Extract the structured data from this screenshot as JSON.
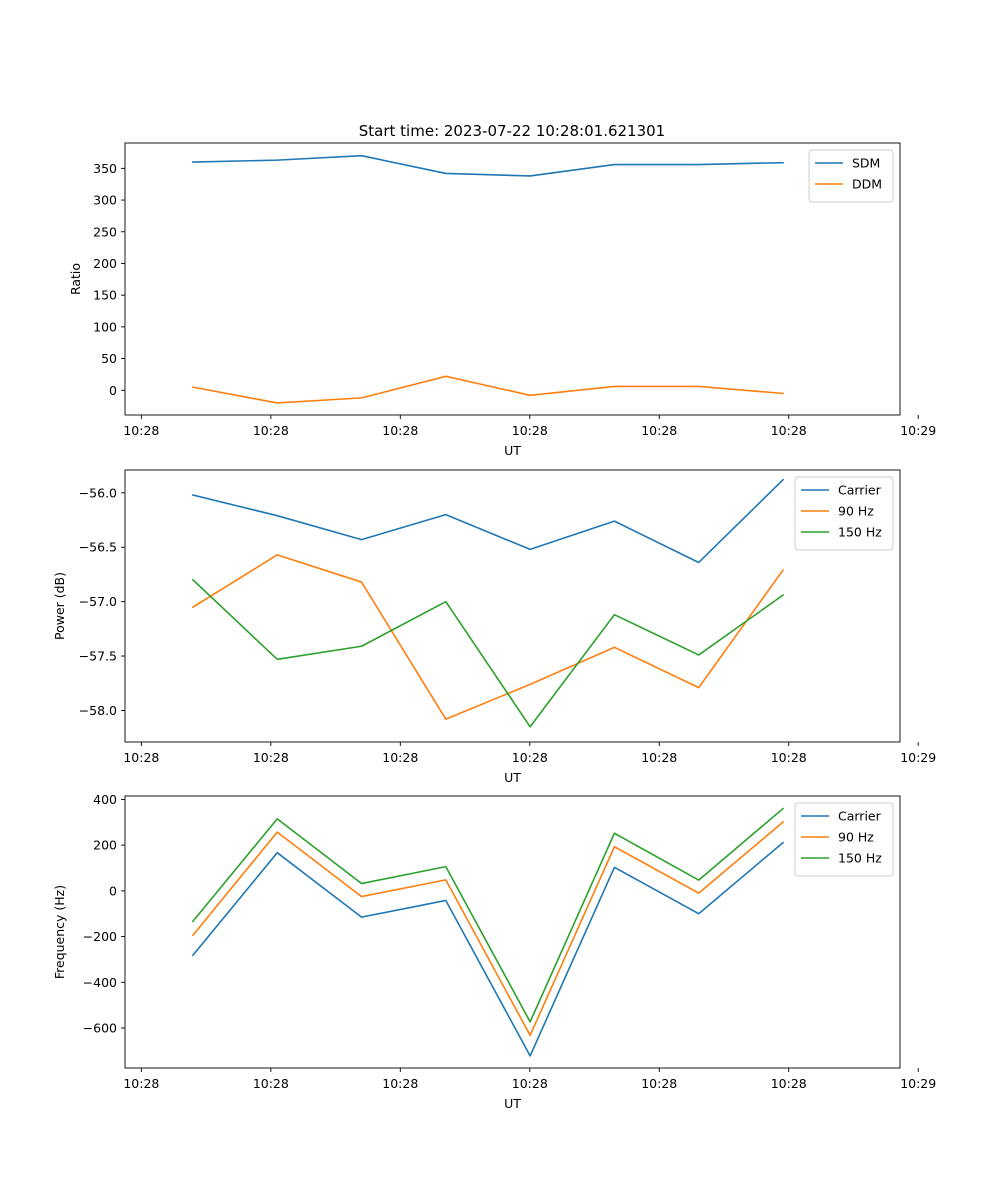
{
  "figure": {
    "title": "Start time: 2023-07-22 10:28:01.621301"
  },
  "colors": {
    "blue": "#1f77b4",
    "orange": "#ff7f0e",
    "green": "#2ca02c"
  },
  "chart_data": [
    {
      "type": "line",
      "title": "Start time: 2023-07-22 10:28:01.621301",
      "xlabel": "UT",
      "ylabel": "Ratio",
      "x": [
        1,
        2,
        3,
        4,
        5,
        6,
        7,
        8
      ],
      "xlim": [
        0.194,
        9.388
      ],
      "xticks": [
        0.388,
        1.924,
        3.46,
        4.996,
        6.532,
        8.068,
        9.604
      ],
      "xtick_labels": [
        "10:28",
        "10:28",
        "10:28",
        "10:28",
        "10:28",
        "10:28",
        "10:29"
      ],
      "ylim": [
        -39,
        390
      ],
      "yticks": [
        0,
        50,
        100,
        150,
        200,
        250,
        300,
        350
      ],
      "ytick_labels": [
        "0",
        "50",
        "100",
        "150",
        "200",
        "250",
        "300",
        "350"
      ],
      "legend": "top-right",
      "series": [
        {
          "name": "SDM",
          "color": "#1f77b4",
          "values": [
            360,
            363,
            370,
            342,
            338,
            356,
            356,
            359
          ]
        },
        {
          "name": "DDM",
          "color": "#ff7f0e",
          "values": [
            5,
            -20,
            -12,
            22,
            -8,
            6,
            6,
            -5
          ]
        }
      ]
    },
    {
      "type": "line",
      "title": "",
      "xlabel": "UT",
      "ylabel": "Power (dB)",
      "x": [
        1,
        2,
        3,
        4,
        5,
        6,
        7,
        8
      ],
      "xlim": [
        0.194,
        9.388
      ],
      "xticks": [
        0.388,
        1.924,
        3.46,
        4.996,
        6.532,
        8.068,
        9.604
      ],
      "xtick_labels": [
        "10:28",
        "10:28",
        "10:28",
        "10:28",
        "10:28",
        "10:28",
        "10:29"
      ],
      "ylim": [
        -58.29,
        -55.79
      ],
      "yticks": [
        -58.0,
        -57.5,
        -57.0,
        -56.5,
        -56.0
      ],
      "ytick_labels": [
        "−58.0",
        "−57.5",
        "−57.0",
        "−56.5",
        "−56.0"
      ],
      "legend": "top-right",
      "series": [
        {
          "name": "Carrier",
          "color": "#1f77b4",
          "values": [
            -56.02,
            -56.21,
            -56.43,
            -56.2,
            -56.52,
            -56.26,
            -56.64,
            -55.88
          ]
        },
        {
          "name": "90 Hz",
          "color": "#ff7f0e",
          "values": [
            -57.05,
            -56.57,
            -56.82,
            -58.08,
            -57.76,
            -57.42,
            -57.79,
            -56.71
          ]
        },
        {
          "name": "150 Hz",
          "color": "#2ca02c",
          "values": [
            -56.8,
            -57.53,
            -57.41,
            -57.0,
            -58.15,
            -57.12,
            -57.49,
            -56.94
          ]
        }
      ]
    },
    {
      "type": "line",
      "title": "",
      "xlabel": "UT",
      "ylabel": "Frequency (Hz)",
      "x": [
        1,
        2,
        3,
        4,
        5,
        6,
        7,
        8
      ],
      "xlim": [
        0.194,
        9.388
      ],
      "xticks": [
        0.388,
        1.924,
        3.46,
        4.996,
        6.532,
        8.068,
        9.604
      ],
      "xtick_labels": [
        "10:28",
        "10:28",
        "10:28",
        "10:28",
        "10:28",
        "10:28",
        "10:29"
      ],
      "ylim": [
        -775,
        415
      ],
      "yticks": [
        -600,
        -400,
        -200,
        0,
        200,
        400
      ],
      "ytick_labels": [
        "−600",
        "−400",
        "−200",
        "0",
        "200",
        "400"
      ],
      "legend": "top-right",
      "series": [
        {
          "name": "Carrier",
          "color": "#1f77b4",
          "values": [
            -282,
            167,
            -115,
            -42,
            -722,
            103,
            -100,
            211
          ]
        },
        {
          "name": "90 Hz",
          "color": "#ff7f0e",
          "values": [
            -194,
            257,
            -25,
            48,
            -632,
            193,
            -10,
            301
          ]
        },
        {
          "name": "150 Hz",
          "color": "#2ca02c",
          "values": [
            -133,
            315,
            32,
            106,
            -573,
            252,
            47,
            360
          ]
        }
      ]
    }
  ]
}
